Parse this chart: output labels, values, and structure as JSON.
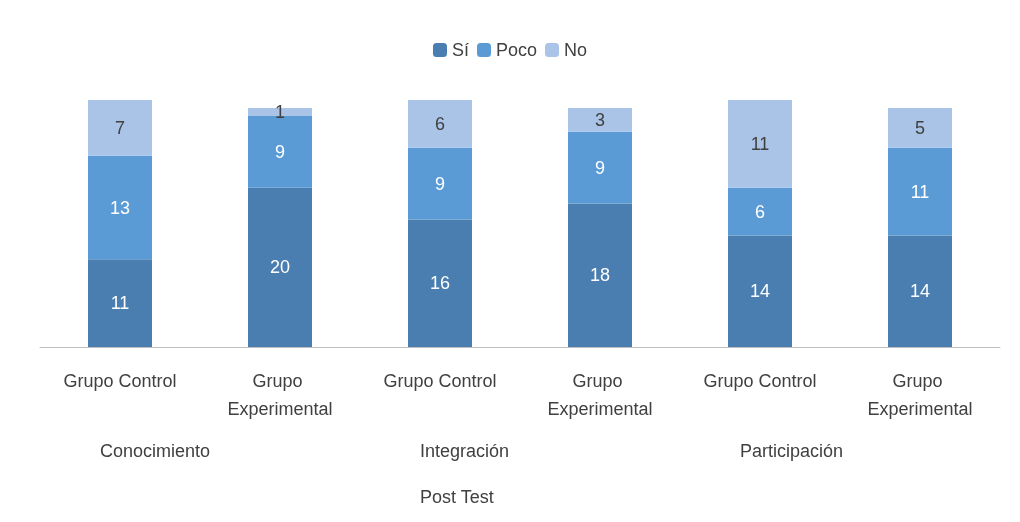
{
  "chart_data": {
    "type": "bar",
    "stacked": true,
    "data_labels": true,
    "legend": "top",
    "grid": false,
    "xlabel": "Post Test",
    "categories": [
      "Grupo Control",
      "Grupo Experimental",
      "Grupo Control",
      "Grupo Experimental",
      "Grupo Control",
      "Grupo Experimental"
    ],
    "annotations": [
      "Conocimiento",
      "Integración",
      "Participación"
    ],
    "series": [
      {
        "name": "Sí",
        "color": "#4a7eb0",
        "values": [
          11,
          20,
          16,
          18,
          14,
          14
        ]
      },
      {
        "name": "Poco",
        "color": "#5b9bd5",
        "values": [
          13,
          9,
          9,
          9,
          6,
          11
        ]
      },
      {
        "name": "No",
        "color": "#a9c4e6",
        "values": [
          7,
          1,
          6,
          3,
          11,
          5
        ]
      }
    ]
  }
}
